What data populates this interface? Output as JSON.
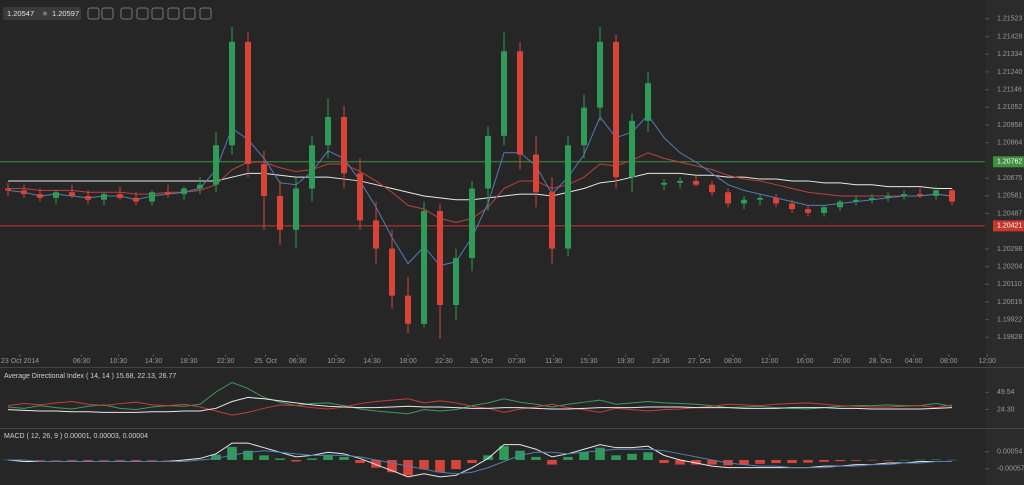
{
  "chart_data": [
    {
      "type": "candlestick",
      "bid": 1.20547,
      "ask": 1.20597,
      "up_color": "#2e9b57",
      "down_color": "#d9443a",
      "xlim": [
        -0.5,
        61.06
      ],
      "xticks": [
        {
          "value": 0.75,
          "label": "23 Oct 2014"
        },
        {
          "value": 4.6,
          "label": "06:30"
        },
        {
          "value": 6.9,
          "label": "10:30"
        },
        {
          "value": 9.1,
          "label": "14:30"
        },
        {
          "value": 11.3,
          "label": "18:30"
        },
        {
          "value": 13.6,
          "label": "22:30"
        },
        {
          "value": 16.1,
          "label": "25. Oct"
        },
        {
          "value": 18.1,
          "label": "06:30"
        },
        {
          "value": 20.5,
          "label": "10:30"
        },
        {
          "value": 22.75,
          "label": "14:30"
        },
        {
          "value": 25,
          "label": "18:00"
        },
        {
          "value": 27.25,
          "label": "22:30"
        },
        {
          "value": 29.6,
          "label": "26. Oct"
        },
        {
          "value": 31.8,
          "label": "07:30"
        },
        {
          "value": 34.1,
          "label": "11:30"
        },
        {
          "value": 36.3,
          "label": "15:30"
        },
        {
          "value": 38.6,
          "label": "19:30"
        },
        {
          "value": 40.8,
          "label": "23:30"
        },
        {
          "value": 43.2,
          "label": "27. Oct"
        },
        {
          "value": 45.3,
          "label": "08:00"
        },
        {
          "value": 47.6,
          "label": "12:00"
        },
        {
          "value": 49.8,
          "label": "16:00"
        },
        {
          "value": 52.1,
          "label": "20:00"
        },
        {
          "value": 54.5,
          "label": "28. Oct"
        },
        {
          "value": 56.6,
          "label": "04:00"
        },
        {
          "value": 58.8,
          "label": "08:00"
        },
        {
          "value": 61.2,
          "label": "12:00"
        }
      ],
      "ylim": [
        1.1975,
        1.2158
      ],
      "yticks": [
        {
          "value": 1.21523,
          "label": "1.21523"
        },
        {
          "value": 1.21428,
          "label": "1.21428"
        },
        {
          "value": 1.21334,
          "label": "1.21334"
        },
        {
          "value": 1.2124,
          "label": "1.21240"
        },
        {
          "value": 1.21146,
          "label": "1.21146"
        },
        {
          "value": 1.21052,
          "label": "1.21052"
        },
        {
          "value": 1.20958,
          "label": "1.20958"
        },
        {
          "value": 1.20864,
          "label": "1.20864"
        },
        {
          "value": 1.20675,
          "label": "1.20675"
        },
        {
          "value": 1.20581,
          "label": "1.20581"
        },
        {
          "value": 1.20487,
          "label": "1.20487"
        },
        {
          "value": 1.20298,
          "label": "1.20298"
        },
        {
          "value": 1.20204,
          "label": "1.20204"
        },
        {
          "value": 1.2011,
          "label": "1.20110"
        },
        {
          "value": 1.20016,
          "label": "1.20016"
        },
        {
          "value": 1.19922,
          "label": "1.19922"
        },
        {
          "value": 1.19828,
          "label": "1.19828"
        }
      ],
      "levels": [
        {
          "value": 1.20762,
          "color": "#3f8f3f"
        },
        {
          "value": 1.20421,
          "color": "#c9372c"
        }
      ],
      "open": [
        1.2062,
        1.2061,
        1.2059,
        1.2057,
        1.206,
        1.2058,
        1.2056,
        1.2059,
        1.2057,
        1.2055,
        1.206,
        1.2059,
        1.2062,
        1.2064,
        1.2085,
        1.214,
        1.2075,
        1.2058,
        1.204,
        1.2062,
        1.2085,
        1.21,
        1.207,
        1.2045,
        1.203,
        1.2005,
        1.199,
        1.205,
        1.2,
        1.2025,
        1.2062,
        1.209,
        1.2135,
        1.208,
        1.206,
        1.203,
        1.2085,
        1.2105,
        1.214,
        1.2068,
        1.2098,
        1.2064,
        1.2065,
        1.2066,
        1.2064,
        1.206,
        1.2054,
        1.2056,
        1.2057,
        1.2054,
        1.2051,
        1.2049,
        1.2052,
        1.2055,
        1.2056,
        1.2057,
        1.2058,
        1.2059,
        1.2058,
        1.2061
      ],
      "high": [
        1.2065,
        1.2064,
        1.2062,
        1.2061,
        1.2064,
        1.2061,
        1.206,
        1.2063,
        1.206,
        1.2061,
        1.2064,
        1.2063,
        1.2068,
        1.2092,
        1.2148,
        1.2145,
        1.2082,
        1.2066,
        1.2068,
        1.209,
        1.211,
        1.2106,
        1.2078,
        1.2055,
        1.204,
        1.2015,
        1.2055,
        1.2054,
        1.203,
        1.2066,
        1.2095,
        1.2145,
        1.214,
        1.209,
        1.2068,
        1.209,
        1.2112,
        1.2148,
        1.2144,
        1.2102,
        1.2124,
        1.2067,
        1.2068,
        1.2069,
        1.2066,
        1.2062,
        1.2058,
        1.2059,
        1.2059,
        1.2056,
        1.2053,
        1.2053,
        1.2056,
        1.2058,
        1.2059,
        1.206,
        1.2061,
        1.2062,
        1.2063,
        1.2062
      ],
      "low": [
        1.2058,
        1.2057,
        1.2055,
        1.2054,
        1.2057,
        1.2054,
        1.2053,
        1.2056,
        1.2053,
        1.2053,
        1.2057,
        1.2056,
        1.2059,
        1.206,
        1.208,
        1.2068,
        1.204,
        1.2032,
        1.203,
        1.2055,
        1.2078,
        1.2062,
        1.204,
        1.2022,
        1.1998,
        1.1985,
        1.1988,
        1.1982,
        1.1992,
        1.2018,
        1.205,
        1.2085,
        1.2072,
        1.2052,
        1.2022,
        1.2026,
        1.2078,
        1.2098,
        1.2062,
        1.206,
        1.2092,
        1.2061,
        1.2062,
        1.2063,
        1.2058,
        1.2052,
        1.2051,
        1.2053,
        1.2052,
        1.2049,
        1.2047,
        1.2047,
        1.205,
        1.2053,
        1.2054,
        1.2055,
        1.2056,
        1.2057,
        1.2056,
        1.2053
      ],
      "close": [
        1.2061,
        1.2059,
        1.2057,
        1.206,
        1.2058,
        1.2056,
        1.2059,
        1.2057,
        1.2055,
        1.206,
        1.2059,
        1.2062,
        1.2064,
        1.2085,
        1.214,
        1.2075,
        1.2058,
        1.204,
        1.2062,
        1.2085,
        1.21,
        1.207,
        1.2045,
        1.203,
        1.2005,
        1.199,
        1.205,
        1.2,
        1.2025,
        1.2062,
        1.209,
        1.2135,
        1.208,
        1.206,
        1.203,
        1.2085,
        1.2105,
        1.214,
        1.2068,
        1.2098,
        1.2118,
        1.2065,
        1.2066,
        1.2064,
        1.206,
        1.2054,
        1.2056,
        1.2057,
        1.2054,
        1.2051,
        1.2049,
        1.2052,
        1.2055,
        1.2056,
        1.2057,
        1.2058,
        1.2059,
        1.2058,
        1.2061,
        1.2055
      ],
      "overlays": [
        {
          "color": "#e8e8e8",
          "values": [
            1.2066,
            1.2066,
            1.2066,
            1.2066,
            1.2066,
            1.2066,
            1.2066,
            1.2066,
            1.2066,
            1.2066,
            1.2066,
            1.2066,
            1.2066,
            1.2066,
            1.2068,
            1.207,
            1.207,
            1.2069,
            1.2068,
            1.2068,
            1.2068,
            1.2067,
            1.2066,
            1.2064,
            1.2062,
            1.206,
            1.2058,
            1.2057,
            1.2056,
            1.2056,
            1.2057,
            1.2058,
            1.2059,
            1.2059,
            1.2058,
            1.206,
            1.2062,
            1.2065,
            1.2066,
            1.2068,
            1.207,
            1.207,
            1.207,
            1.2069,
            1.2069,
            1.2068,
            1.2068,
            1.2067,
            1.2067,
            1.2066,
            1.2066,
            1.2065,
            1.2065,
            1.2064,
            1.2064,
            1.2063,
            1.2063,
            1.2063,
            1.2062,
            1.2062
          ]
        },
        {
          "color": "#c0403a",
          "values": [
            1.2062,
            1.2062,
            1.2061,
            1.2061,
            1.2061,
            1.206,
            1.206,
            1.206,
            1.2059,
            1.2059,
            1.206,
            1.206,
            1.2061,
            1.2064,
            1.2072,
            1.2076,
            1.2076,
            1.2073,
            1.2071,
            1.2072,
            1.2075,
            1.2075,
            1.2071,
            1.2066,
            1.206,
            1.2053,
            1.2051,
            1.2046,
            1.2044,
            1.2046,
            1.2052,
            1.2062,
            1.2066,
            1.2066,
            1.2062,
            1.2064,
            1.2068,
            1.2075,
            1.2074,
            1.2077,
            1.2081,
            1.2078,
            1.2076,
            1.2074,
            1.2072,
            1.2069,
            1.2067,
            1.2066,
            1.2064,
            1.2062,
            1.206,
            1.2059,
            1.2058,
            1.2058,
            1.2058,
            1.2058,
            1.2058,
            1.2058,
            1.2059,
            1.2058
          ]
        },
        {
          "color": "#4d7fb8",
          "values": [
            1.2061,
            1.206,
            1.2058,
            1.2059,
            1.2058,
            1.2057,
            1.2058,
            1.2058,
            1.2056,
            1.2058,
            1.2059,
            1.206,
            1.2062,
            1.2072,
            1.2094,
            1.2088,
            1.2078,
            1.2065,
            1.2064,
            1.2071,
            1.2082,
            1.2078,
            1.2066,
            1.2052,
            1.2036,
            1.2022,
            1.2031,
            1.2021,
            1.2023,
            1.2036,
            1.2054,
            1.2081,
            1.2081,
            1.2074,
            1.2059,
            1.2068,
            1.208,
            1.21,
            1.2089,
            1.2092,
            1.2101,
            1.2089,
            1.2081,
            1.2076,
            1.207,
            1.2064,
            1.2061,
            1.2059,
            1.2057,
            1.2055,
            1.2053,
            1.2053,
            1.2054,
            1.2055,
            1.2056,
            1.2057,
            1.2058,
            1.2058,
            1.2059,
            1.2058
          ]
        }
      ]
    },
    {
      "type": "line",
      "title": "Average Directional Index ( 14, 14 ) 15.68, 22.13, 26.77",
      "ylim": [
        1.5,
        67.6
      ],
      "yticks": [
        49.54,
        {
          "value": 24.3,
          "label": "24.30"
        }
      ],
      "series": [
        {
          "color": "#3f9a5a",
          "values": [
            28,
            26,
            30,
            27,
            25,
            29,
            31,
            26,
            24,
            28,
            30,
            29,
            32,
            50,
            64,
            55,
            42,
            35,
            30,
            33,
            34,
            30,
            25,
            22,
            20,
            18,
            24,
            22,
            24,
            30,
            34,
            40,
            35,
            32,
            28,
            32,
            35,
            38,
            32,
            34,
            36,
            34,
            33,
            32,
            30,
            27,
            28,
            29,
            27,
            26,
            25,
            27,
            29,
            30,
            30,
            31,
            30,
            30,
            33,
            29
          ]
        },
        {
          "color": "#c0403a",
          "values": [
            30,
            33,
            31,
            34,
            36,
            32,
            30,
            33,
            35,
            31,
            30,
            32,
            28,
            22,
            16,
            20,
            26,
            31,
            30,
            27,
            25,
            28,
            33,
            36,
            38,
            40,
            34,
            37,
            34,
            29,
            26,
            20,
            25,
            28,
            32,
            27,
            24,
            20,
            26,
            24,
            22,
            24,
            25,
            27,
            29,
            32,
            31,
            30,
            32,
            33,
            34,
            32,
            30,
            29,
            28,
            28,
            29,
            30,
            27,
            31
          ]
        },
        {
          "color": "#e8e8e8",
          "values": [
            24,
            23,
            22,
            22,
            21,
            21,
            20,
            20,
            20,
            21,
            21,
            22,
            22,
            26,
            36,
            42,
            40,
            37,
            34,
            31,
            29,
            28,
            27,
            27,
            28,
            29,
            28,
            28,
            27,
            26,
            26,
            27,
            27,
            26,
            25,
            25,
            26,
            27,
            27,
            27,
            28,
            28,
            28,
            27,
            27,
            27,
            26,
            26,
            26,
            27,
            27,
            27,
            26,
            26,
            25,
            25,
            25,
            25,
            26,
            27
          ]
        }
      ]
    },
    {
      "type": "macd",
      "title": "MACD ( 12, 26, 9 ) 0.00001, 0.00003, 0.00004",
      "ylim": [
        -0.0015,
        0.0013
      ],
      "yticks": [
        0.00054,
        -0.00057
      ],
      "up_color": "#2e9b57",
      "down_color": "#d9443a",
      "values": [
        2e-05,
        -3e-05,
        -5e-05,
        -4e-05,
        -6e-05,
        -7e-05,
        -5e-05,
        -6e-05,
        -8e-05,
        -5e-05,
        -3e-05,
        -1e-05,
        2e-05,
        0.00035,
        0.00085,
        0.0006,
        0.0003,
        0.0001,
        -0.0001,
        0.0001,
        0.00035,
        0.0002,
        -0.0002,
        -0.0005,
        -0.0008,
        -0.001,
        -0.0006,
        -0.0008,
        -0.0006,
        -0.0002,
        0.0003,
        0.0009,
        0.0006,
        0.0002,
        -0.0003,
        0.0002,
        0.0005,
        0.0008,
        0.0003,
        0.0004,
        0.0005,
        -0.0002,
        -0.0003,
        -0.0003,
        -0.0003,
        -0.00035,
        -0.0003,
        -0.00025,
        -0.0002,
        -0.0002,
        -0.00018,
        -0.00012,
        -8e-05,
        -5e-05,
        -3e-05,
        -2e-05,
        1e-05,
        2e-05,
        3e-05,
        1e-05
      ],
      "series": [
        {
          "color": "#e8e8e8",
          "values": [
            0,
            -0.0001,
            -0.0001,
            -0.0001,
            -0.0001,
            -0.0001,
            -0.0001,
            -0.0001,
            -0.0001,
            -0.0001,
            -0.0001,
            0,
            0.0001,
            0.0004,
            0.0011,
            0.0011,
            0.0008,
            0.0005,
            0.0002,
            0.0003,
            0.0005,
            0.0004,
            0.0001,
            -0.0003,
            -0.0007,
            -0.0011,
            -0.0009,
            -0.0011,
            -0.001,
            -0.0005,
            0.0001,
            0.001,
            0.001,
            0.0007,
            0.0002,
            0.0004,
            0.0007,
            0.001,
            0.0008,
            0.0008,
            0.0009,
            0.0003,
            0,
            -0.0002,
            -0.0004,
            -0.0005,
            -0.0005,
            -0.0005,
            -0.0005,
            -0.0005,
            -0.0005,
            -0.0004,
            -0.0004,
            -0.0003,
            -0.0003,
            -0.0002,
            -0.0002,
            -0.0001,
            -0.0001,
            -0.0001
          ]
        },
        {
          "color": "#4d7fb8",
          "values": [
            0,
            0,
            -0.0001,
            -0.0001,
            -0.0001,
            -0.0001,
            -0.0001,
            -0.0001,
            -0.0001,
            -0.0001,
            -0.0001,
            -0.0001,
            0,
            0.0001,
            0.0003,
            0.0005,
            0.0006,
            0.0005,
            0.0004,
            0.0003,
            0.0003,
            0.0003,
            0.0002,
            0,
            -0.0002,
            -0.0004,
            -0.0006,
            -0.0008,
            -0.0009,
            -0.0008,
            -0.0005,
            -0.0001,
            0.0003,
            0.0005,
            0.0005,
            0.0004,
            0.0005,
            0.0006,
            0.0007,
            0.0007,
            0.0007,
            0.0006,
            0.0004,
            0.0002,
            0,
            -0.0002,
            -0.0003,
            -0.0004,
            -0.0004,
            -0.0005,
            -0.0005,
            -0.0005,
            -0.0004,
            -0.0004,
            -0.0003,
            -0.0003,
            -0.0002,
            -0.0002,
            -0.0001,
            -0.0001
          ]
        }
      ]
    }
  ]
}
